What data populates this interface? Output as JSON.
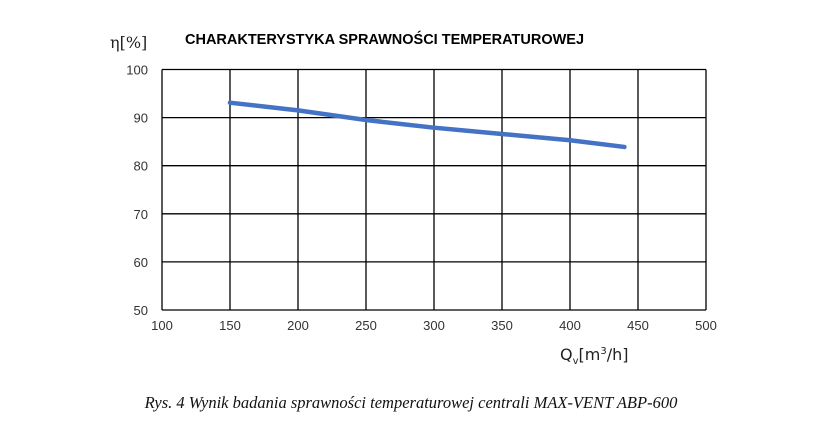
{
  "chart_data": {
    "type": "line",
    "title": "CHARAKTERYSTYKA SPRAWNOŚCI TEMPERATUROWEJ",
    "ylabel": "η[%]",
    "xlabel_main": "Q",
    "xlabel_sub": "v",
    "xlabel_rest": "[m",
    "xlabel_sup": "3",
    "xlabel_end": "/h]",
    "xlim": [
      100,
      500
    ],
    "ylim": [
      50,
      100
    ],
    "xticks": [
      100,
      150,
      200,
      250,
      300,
      350,
      400,
      450,
      500
    ],
    "yticks": [
      50,
      60,
      70,
      80,
      90,
      100
    ],
    "grid": true,
    "series": [
      {
        "name": "η",
        "color": "#4472c4",
        "x": [
          150,
          200,
          250,
          300,
          350,
          400,
          440
        ],
        "y": [
          93.1,
          91.5,
          89.5,
          87.9,
          86.6,
          85.3,
          83.9
        ]
      }
    ]
  },
  "caption": "Rys. 4 Wynik badania sprawności temperaturowej centrali MAX-VENT ABP-600"
}
